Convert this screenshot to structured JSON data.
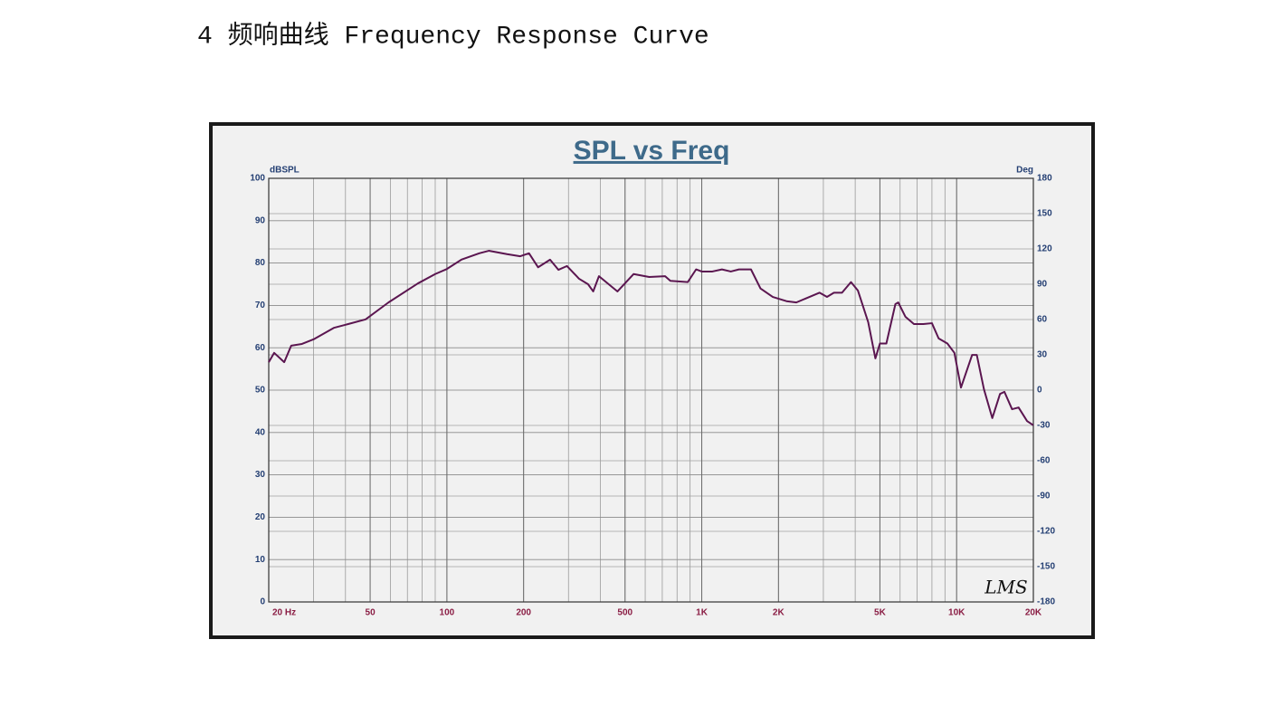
{
  "heading": "4 频响曲线 Frequency Response Curve",
  "chart_data": {
    "type": "line",
    "title": "SPL vs Freq",
    "y_label": "dBSPL",
    "y2_label": "Deg",
    "watermark": "LMS",
    "xscale": "log",
    "grid": true,
    "color": "#5b1650",
    "xlim": [
      20,
      20000
    ],
    "xticks": [
      {
        "value": 20,
        "label": "20 Hz"
      },
      50,
      100,
      200,
      500,
      {
        "value": 1000,
        "label": "1K"
      },
      {
        "value": 2000,
        "label": "2K"
      },
      {
        "value": 5000,
        "label": "5K"
      },
      {
        "value": 10000,
        "label": "10K"
      },
      {
        "value": 20000,
        "label": "20K"
      }
    ],
    "ylim": [
      0,
      100
    ],
    "yticks": [
      0,
      10,
      20,
      30,
      40,
      50,
      60,
      70,
      80,
      90,
      100
    ],
    "y2lim": [
      -180,
      180
    ],
    "y2ticks": [
      -180,
      -150,
      -120,
      -90,
      -60,
      -30,
      0,
      30,
      60,
      90,
      120,
      150,
      180
    ],
    "x": [
      20,
      21,
      23,
      24.5,
      27,
      30,
      36,
      41,
      48,
      59,
      77,
      90,
      100,
      114,
      134,
      146,
      172,
      194,
      210,
      228,
      254,
      274,
      296,
      330,
      358,
      375,
      395,
      467,
      540,
      622,
      718,
      753,
      881,
      950,
      1000,
      1100,
      1200,
      1300,
      1400,
      1560,
      1700,
      1900,
      2150,
      2350,
      2550,
      2900,
      3100,
      3300,
      3550,
      3850,
      4100,
      4500,
      4800,
      5000,
      5300,
      5750,
      5900,
      6300,
      6800,
      7400,
      8000,
      8500,
      9200,
      9800,
      10400,
      11500,
      12000,
      12800,
      13800,
      14800,
      15400,
      16500,
      17500,
      18900,
      20000
    ],
    "values": [
      56.6,
      58.8,
      56.6,
      60.5,
      60.9,
      62,
      64.7,
      65.6,
      66.7,
      70.7,
      75.2,
      77.4,
      78.6,
      80.8,
      82.3,
      82.9,
      82.1,
      81.6,
      82.3,
      79,
      80.8,
      78.4,
      79.3,
      76.3,
      75,
      73.3,
      76.9,
      73.3,
      77.4,
      76.7,
      76.9,
      75.8,
      75.5,
      78.5,
      78,
      78,
      78.5,
      78,
      78.5,
      78.5,
      74,
      72,
      71,
      70.7,
      71.6,
      73,
      72,
      73,
      73,
      75.5,
      73.5,
      66,
      57.5,
      61,
      61,
      70.3,
      70.7,
      67.3,
      65.6,
      65.6,
      65.8,
      62.2,
      61,
      58.8,
      50.6,
      58.3,
      58.3,
      50.2,
      43.4,
      49.1,
      49.6,
      45.5,
      45.9,
      42.7,
      41.7
    ]
  }
}
